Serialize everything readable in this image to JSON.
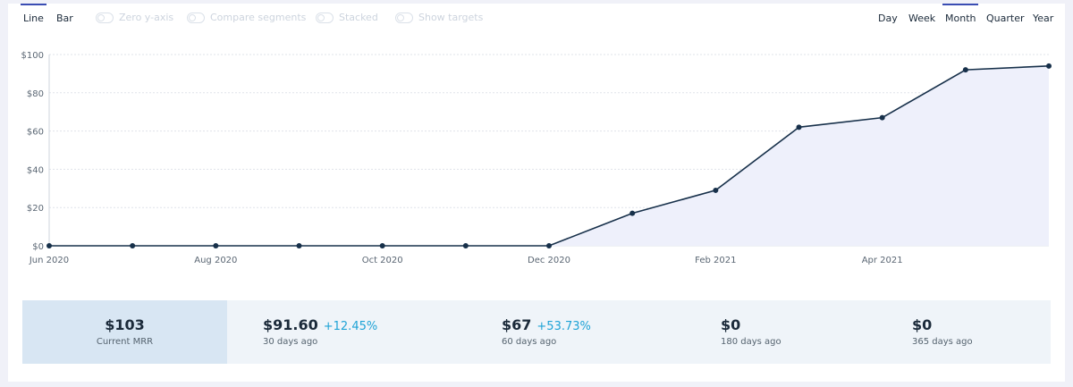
{
  "toolbar": {
    "view_tabs": [
      {
        "label": "Line",
        "active": true
      },
      {
        "label": "Bar",
        "active": false
      }
    ],
    "toggles": [
      {
        "label": "Zero y-axis",
        "enabled": false
      },
      {
        "label": "Compare segments",
        "enabled": false
      },
      {
        "label": "Stacked",
        "enabled": false
      },
      {
        "label": "Show targets",
        "enabled": false
      }
    ],
    "period_tabs": [
      {
        "label": "Day",
        "active": false
      },
      {
        "label": "Week",
        "active": false
      },
      {
        "label": "Month",
        "active": true
      },
      {
        "label": "Quarter",
        "active": false
      },
      {
        "label": "Year",
        "active": false
      }
    ]
  },
  "chart_data": {
    "type": "area",
    "title": "",
    "xlabel": "",
    "ylabel": "",
    "x": [
      "2020-06",
      "2020-07",
      "2020-08",
      "2020-09",
      "2020-10",
      "2020-11",
      "2020-12",
      "2021-01",
      "2021-02",
      "2021-03",
      "2021-04",
      "2021-05",
      "2021-06"
    ],
    "x_tick_labels": [
      "Jun 2020",
      "Aug 2020",
      "Oct 2020",
      "Dec 2020",
      "Feb 2021",
      "Apr 2021"
    ],
    "x_tick_positions": [
      "2020-06",
      "2020-08",
      "2020-10",
      "2020-12",
      "2021-02",
      "2021-04"
    ],
    "series": [
      {
        "values": [
          0,
          0,
          0,
          0,
          0,
          0,
          0,
          17,
          29,
          62,
          67,
          92,
          94
        ]
      }
    ],
    "ylim": [
      0,
      100
    ],
    "y_ticks": [
      0,
      20,
      40,
      60,
      80,
      100
    ],
    "y_tick_labels": [
      "$0",
      "$20",
      "$40",
      "$60",
      "$80",
      "$100"
    ],
    "grid": true,
    "colors": {
      "line": "#17304a",
      "fill": "#eef0fb",
      "grid": "#dfe3ea",
      "tick_text": "#5a6673"
    }
  },
  "stats": {
    "current": {
      "value": "$103",
      "label": "Current MRR"
    },
    "comparisons": [
      {
        "value": "$91.60",
        "change": "+12.45%",
        "label": "30 days ago"
      },
      {
        "value": "$67",
        "change": "+53.73%",
        "label": "60 days ago"
      },
      {
        "value": "$0",
        "change": "",
        "label": "180 days ago"
      },
      {
        "value": "$0",
        "change": "",
        "label": "365 days ago"
      }
    ]
  }
}
